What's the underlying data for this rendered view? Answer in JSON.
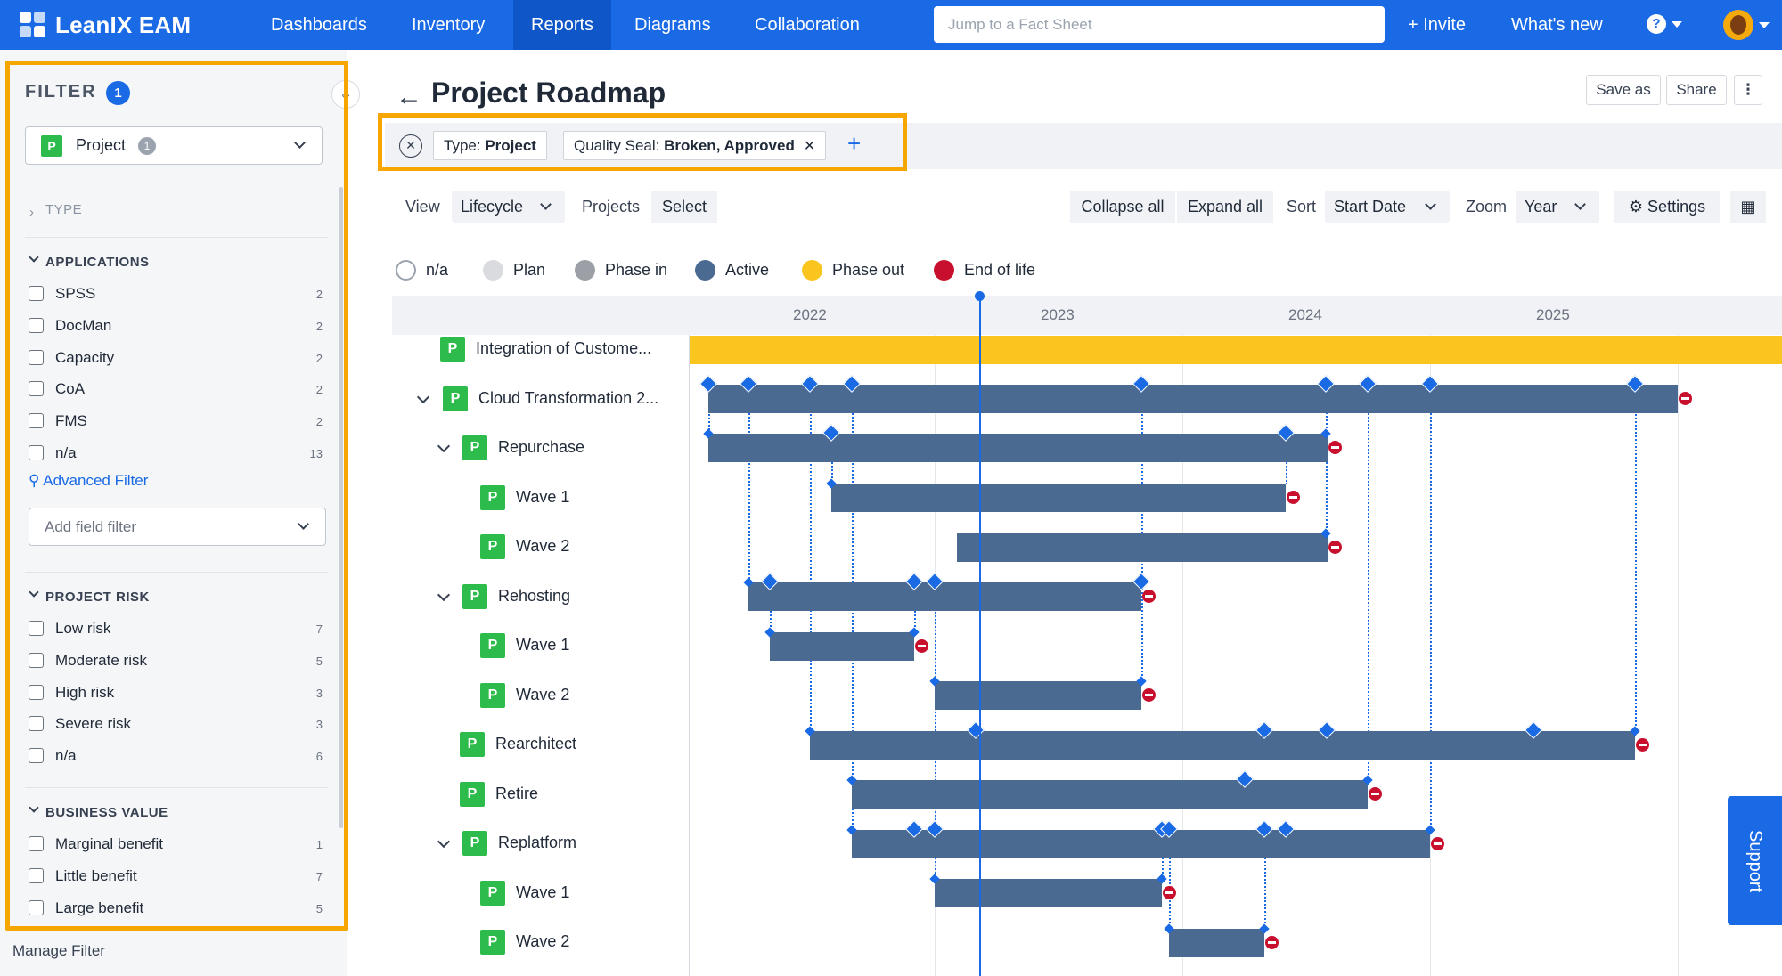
{
  "app": {
    "brand": "LeanIX EAM",
    "nav": [
      "Dashboards",
      "Inventory",
      "Reports",
      "Diagrams",
      "Collaboration"
    ],
    "active_nav": "Reports",
    "search_placeholder": "Jump to a Fact Sheet",
    "invite": "+ Invite",
    "whats_new": "What's new",
    "help": "?"
  },
  "filter": {
    "title": "FILTER",
    "count": "1",
    "type_select": {
      "badge": "P",
      "label": "Project",
      "count": "1"
    },
    "type_section": "TYPE",
    "applications": {
      "title": "APPLICATIONS",
      "items": [
        {
          "label": "SPSS",
          "count": "2"
        },
        {
          "label": "DocMan",
          "count": "2"
        },
        {
          "label": "Capacity",
          "count": "2"
        },
        {
          "label": "CoA",
          "count": "2"
        },
        {
          "label": "FMS",
          "count": "2"
        },
        {
          "label": "n/a",
          "count": "13"
        }
      ]
    },
    "advanced_filter": "Advanced Filter",
    "field_filter_placeholder": "Add field filter",
    "project_risk": {
      "title": "PROJECT RISK",
      "items": [
        {
          "label": "Low risk",
          "count": "7"
        },
        {
          "label": "Moderate risk",
          "count": "5"
        },
        {
          "label": "High risk",
          "count": "3"
        },
        {
          "label": "Severe risk",
          "count": "3"
        },
        {
          "label": "n/a",
          "count": "6"
        }
      ]
    },
    "business_value": {
      "title": "BUSINESS VALUE",
      "items": [
        {
          "label": "Marginal benefit",
          "count": "1"
        },
        {
          "label": "Little benefit",
          "count": "7"
        },
        {
          "label": "Large benefit",
          "count": "5"
        }
      ]
    },
    "manage": "Manage Filter"
  },
  "report": {
    "title": "Project Roadmap",
    "save_as": "Save as",
    "share": "Share",
    "chips": [
      {
        "key": "Type:",
        "value": "Project",
        "removable": false
      },
      {
        "key": "Quality Seal:",
        "value": "Broken, Approved",
        "removable": true
      }
    ],
    "toolbar": {
      "view_label": "View",
      "view_value": "Lifecycle",
      "projects_label": "Projects",
      "projects_value": "Select",
      "collapse_all": "Collapse all",
      "expand_all": "Expand all",
      "sort_label": "Sort",
      "sort_value": "Start Date",
      "zoom_label": "Zoom",
      "zoom_value": "Year",
      "settings": "Settings"
    },
    "legend": [
      {
        "label": "n/a",
        "color": "#ffffff"
      },
      {
        "label": "Plan",
        "color": "#d9dbdf"
      },
      {
        "label": "Phase in",
        "color": "#9c9fa5"
      },
      {
        "label": "Active",
        "color": "#4a6a92"
      },
      {
        "label": "Phase out",
        "color": "#fbc520"
      },
      {
        "label": "End of life",
        "color": "#c8102e"
      }
    ],
    "years": [
      "2022",
      "2023",
      "2024",
      "2025"
    ],
    "rows": [
      {
        "label": "Integration of Custome...",
        "expandable": false
      },
      {
        "label": "Cloud Transformation 2...",
        "expandable": true
      },
      {
        "label": "Repurchase",
        "expandable": true
      },
      {
        "label": "Wave 1",
        "expandable": false
      },
      {
        "label": "Wave 2",
        "expandable": false
      },
      {
        "label": "Rehosting",
        "expandable": true
      },
      {
        "label": "Wave 1",
        "expandable": false
      },
      {
        "label": "Wave 2",
        "expandable": false
      },
      {
        "label": "Rearchitect",
        "expandable": false
      },
      {
        "label": "Retire",
        "expandable": false
      },
      {
        "label": "Replatform",
        "expandable": true
      },
      {
        "label": "Wave 1",
        "expandable": false
      },
      {
        "label": "Wave 2",
        "expandable": false
      }
    ],
    "support": "Support"
  }
}
